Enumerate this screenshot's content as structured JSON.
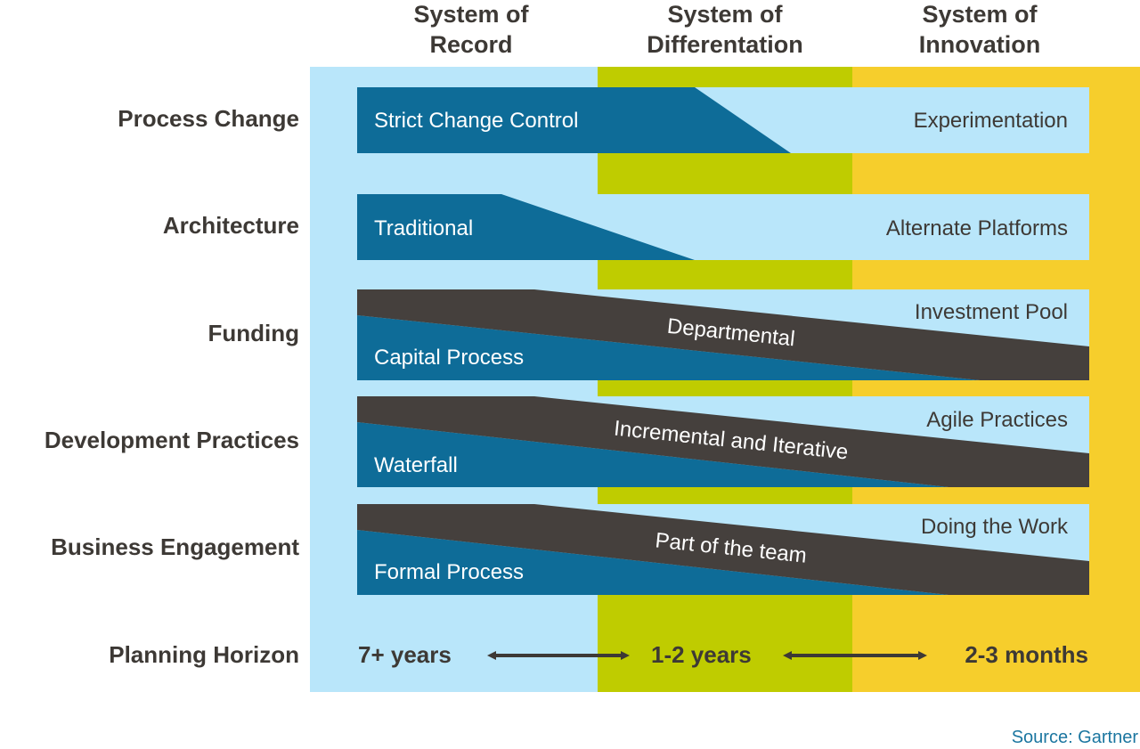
{
  "colors": {
    "record": "#b9e6fa",
    "differentiation": "#bfcc00",
    "innovation": "#f6ce2c",
    "band_light": "#b9e6fa",
    "band_blue": "#0e6c98",
    "band_dark": "#45403d",
    "text_dark": "#3d3935",
    "source": "#1b76a0"
  },
  "columns": [
    {
      "line1": "System of",
      "line2": "Record"
    },
    {
      "line1": "System of",
      "line2": "Differentation"
    },
    {
      "line1": "System of",
      "line2": "Innovation"
    }
  ],
  "rows": [
    {
      "label": "Process Change",
      "left": "Strict Change Control",
      "right": "Experimentation"
    },
    {
      "label": "Architecture",
      "left": "Traditional",
      "right": "Alternate Platforms"
    },
    {
      "label": "Funding",
      "left": "Capital Process",
      "middle": "Departmental",
      "right": "Investment Pool"
    },
    {
      "label": "Development Practices",
      "left": "Waterfall",
      "middle": "Incremental and Iterative",
      "right": "Agile Practices"
    },
    {
      "label": "Business Engagement",
      "left": "Formal Process",
      "middle": "Part of the team",
      "right": "Doing the Work"
    }
  ],
  "planning": {
    "label": "Planning Horizon",
    "values": [
      "7+ years",
      "1-2 years",
      "2-3 months"
    ]
  },
  "source": "Source: Gartner"
}
